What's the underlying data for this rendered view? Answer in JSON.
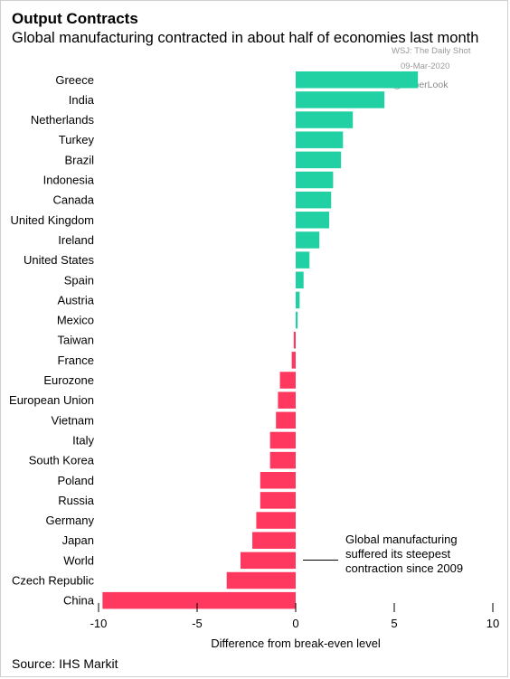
{
  "title": "Output Contracts",
  "subtitle": "Global manufacturing contracted in about half of economies last month",
  "watermark": {
    "source": "WSJ: The Daily Shot",
    "date": "09-Mar-2020",
    "handle": "@SoberLook"
  },
  "source_note": "Source: IHS Markit",
  "annotation": "Global manufacturing suffered its steepest contraction since 2009",
  "colors": {
    "positive": "#21d1a3",
    "negative": "#ff385f"
  },
  "chart_data": {
    "type": "bar",
    "orientation": "horizontal",
    "categories": [
      "Greece",
      "India",
      "Netherlands",
      "Turkey",
      "Brazil",
      "Indonesia",
      "Canada",
      "United Kingdom",
      "Ireland",
      "United States",
      "Spain",
      "Austria",
      "Mexico",
      "Taiwan",
      "France",
      "Eurozone",
      "European Union",
      "Vietnam",
      "Italy",
      "South Korea",
      "Poland",
      "Russia",
      "Germany",
      "Japan",
      "World",
      "Czech Republic",
      "China"
    ],
    "values": [
      6.2,
      4.5,
      2.9,
      2.4,
      2.3,
      1.9,
      1.8,
      1.7,
      1.2,
      0.7,
      0.4,
      0.2,
      0.1,
      -0.1,
      -0.2,
      -0.8,
      -0.9,
      -1.0,
      -1.3,
      -1.3,
      -1.8,
      -1.8,
      -2.0,
      -2.2,
      -2.8,
      -3.5,
      -9.8
    ],
    "xlabel": "Difference from break-even level",
    "ylabel": "",
    "xlim": [
      -10,
      10
    ],
    "xticks": [
      -10,
      -5,
      0,
      5,
      10
    ],
    "grid": false,
    "legend": "none"
  }
}
